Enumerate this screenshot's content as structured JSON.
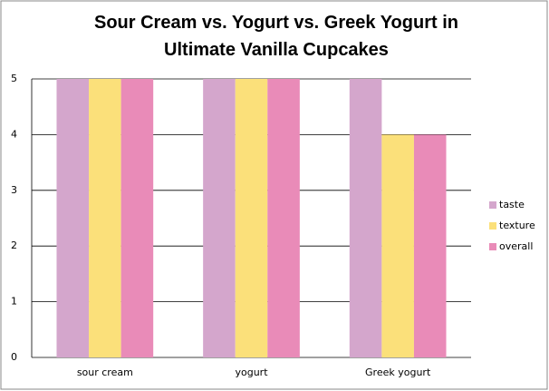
{
  "chart_data": {
    "type": "bar",
    "title": "Sour Cream vs. Yogurt vs. Greek Yogurt in Ultimate Vanilla Cupcakes",
    "categories": [
      "sour cream",
      "yogurt",
      "Greek yogurt"
    ],
    "series": [
      {
        "name": "taste",
        "color": "#d4a6cc",
        "values": [
          5,
          5,
          5
        ]
      },
      {
        "name": "texture",
        "color": "#fbe07a",
        "values": [
          5,
          5,
          4
        ]
      },
      {
        "name": "overall",
        "color": "#e98bb8",
        "values": [
          5,
          5,
          4
        ]
      }
    ],
    "ylim": [
      0,
      5
    ],
    "yticks": [
      0,
      1,
      2,
      3,
      4,
      5
    ],
    "grid": true,
    "legend": "right"
  }
}
